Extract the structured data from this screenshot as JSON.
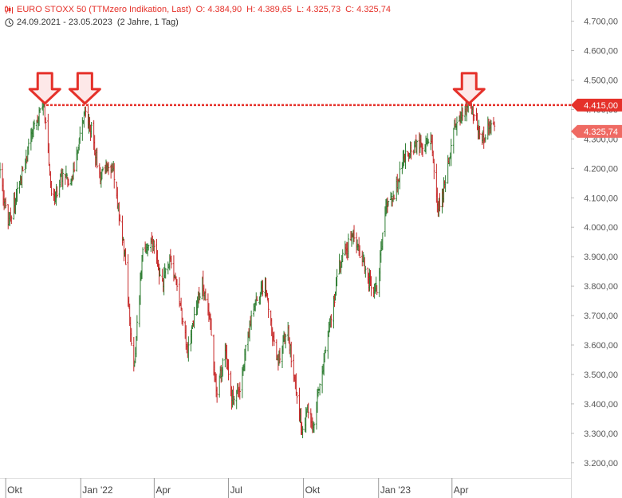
{
  "header": {
    "instrument": "EURO STOXX 50 (TTMzero Indikation, Last)",
    "open": "O: 4.384,90",
    "high": "H: 4.389,65",
    "low": "L: 4.325,73",
    "close": "C: 4.325,74",
    "date_range": "24.09.2021 - 23.05.2023",
    "period": "(2 Jahre, 1 Tag)",
    "icons": [
      "candlestick-icon",
      "clock-icon"
    ]
  },
  "colors": {
    "up": "#2e7d32",
    "down": "#c62828",
    "resistance": "#e5312a",
    "last_price_label": "#ef6a63",
    "arrow_fill": "#fde8e8",
    "arrow_stroke": "#e5312a"
  },
  "chart_data": {
    "type": "ohlc",
    "title": "EURO STOXX 50 (TTMzero Indikation, Last)",
    "ylim": [
      3150,
      4750
    ],
    "y_ticks": [
      3200,
      3300,
      3400,
      3500,
      3600,
      3700,
      3800,
      3900,
      4000,
      4100,
      4200,
      4300,
      4400,
      4500,
      4600,
      4700
    ],
    "y_tick_labels": [
      "3.200,00",
      "3.300,00",
      "3.400,00",
      "3.500,00",
      "3.600,00",
      "3.700,00",
      "3.800,00",
      "3.900,00",
      "4.000,00",
      "4.100,00",
      "4.200,00",
      "4.300,00",
      "4.400,00",
      "4.500,00",
      "4.600,00",
      "4.700,00"
    ],
    "x_labels": [
      {
        "label": "Okt",
        "date": "2021-10-01"
      },
      {
        "label": "Jan '22",
        "date": "2022-01-01"
      },
      {
        "label": "Apr",
        "date": "2022-04-01"
      },
      {
        "label": "Jul",
        "date": "2022-07-01"
      },
      {
        "label": "Okt",
        "date": "2022-10-01"
      },
      {
        "label": "Jan '23",
        "date": "2023-01-01"
      },
      {
        "label": "Apr",
        "date": "2023-04-01"
      }
    ],
    "x_range": [
      "2021-09-24",
      "2023-05-23"
    ],
    "price_path": [
      [
        "2021-09-24",
        4180
      ],
      [
        "2021-10-04",
        4010
      ],
      [
        "2021-10-20",
        4170
      ],
      [
        "2021-11-05",
        4350
      ],
      [
        "2021-11-17",
        4410
      ],
      [
        "2021-11-26",
        4110
      ],
      [
        "2021-12-01",
        4090
      ],
      [
        "2021-12-10",
        4190
      ],
      [
        "2021-12-20",
        4140
      ],
      [
        "2022-01-05",
        4390
      ],
      [
        "2022-01-14",
        4330
      ],
      [
        "2022-01-24",
        4170
      ],
      [
        "2022-02-02",
        4200
      ],
      [
        "2022-02-10",
        4190
      ],
      [
        "2022-02-24",
        3900
      ],
      [
        "2022-03-07",
        3510
      ],
      [
        "2022-03-18",
        3920
      ],
      [
        "2022-03-29",
        3960
      ],
      [
        "2022-04-11",
        3800
      ],
      [
        "2022-04-21",
        3900
      ],
      [
        "2022-05-05",
        3700
      ],
      [
        "2022-05-12",
        3580
      ],
      [
        "2022-05-30",
        3820
      ],
      [
        "2022-06-10",
        3650
      ],
      [
        "2022-06-16",
        3430
      ],
      [
        "2022-06-27",
        3580
      ],
      [
        "2022-07-05",
        3410
      ],
      [
        "2022-07-15",
        3460
      ],
      [
        "2022-07-29",
        3700
      ],
      [
        "2022-08-15",
        3810
      ],
      [
        "2022-08-29",
        3540
      ],
      [
        "2022-09-12",
        3640
      ],
      [
        "2022-09-29",
        3300
      ],
      [
        "2022-10-06",
        3380
      ],
      [
        "2022-10-12",
        3310
      ],
      [
        "2022-10-24",
        3500
      ],
      [
        "2022-11-04",
        3700
      ],
      [
        "2022-11-15",
        3880
      ],
      [
        "2022-12-01",
        3980
      ],
      [
        "2022-12-19",
        3820
      ],
      [
        "2022-12-30",
        3790
      ],
      [
        "2023-01-10",
        4060
      ],
      [
        "2023-01-20",
        4110
      ],
      [
        "2023-02-03",
        4250
      ],
      [
        "2023-02-16",
        4270
      ],
      [
        "2023-03-06",
        4300
      ],
      [
        "2023-03-15",
        4060
      ],
      [
        "2023-03-20",
        4100
      ],
      [
        "2023-04-03",
        4320
      ],
      [
        "2023-04-13",
        4380
      ],
      [
        "2023-04-21",
        4410
      ],
      [
        "2023-04-28",
        4370
      ],
      [
        "2023-05-05",
        4330
      ],
      [
        "2023-05-11",
        4290
      ],
      [
        "2023-05-17",
        4360
      ],
      [
        "2023-05-23",
        4326
      ]
    ],
    "resistance": {
      "value": 4415,
      "label": "4.415,00"
    },
    "last_price": {
      "value": 4325.74,
      "label": "4.325,74"
    },
    "arrows": [
      {
        "date": "2021-11-17"
      },
      {
        "date": "2022-01-05"
      },
      {
        "date": "2023-04-21"
      }
    ],
    "grid": false,
    "legend": "none"
  }
}
